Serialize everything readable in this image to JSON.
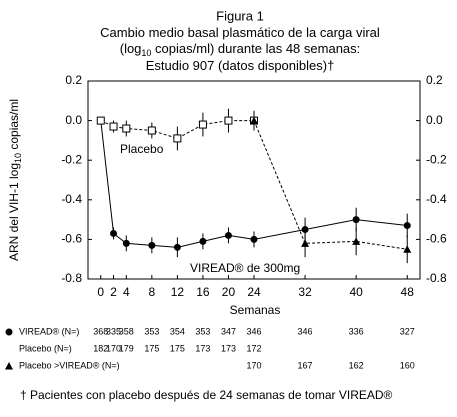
{
  "chart_data": {
    "type": "line",
    "title": [
      "Figura 1",
      "Cambio medio basal plasmático de la carga viral",
      [
        "(log",
        "10",
        " copias/ml) durante las 48 semanas:"
      ],
      "Estudio 907 (datos disponibles)†"
    ],
    "y_label": [
      "ARN del VIH-1 log",
      "10",
      " copias/ml"
    ],
    "x_label": "Semanas",
    "x": [
      0,
      2,
      4,
      8,
      12,
      16,
      20,
      24,
      32,
      40,
      48
    ],
    "xlim": [
      -2,
      50
    ],
    "xticks": [
      0,
      2,
      4,
      8,
      12,
      16,
      20,
      24,
      32,
      40,
      48
    ],
    "ylim": [
      -0.8,
      0.2
    ],
    "yticks": [
      0.2,
      {
        "value": 0,
        "label": "0.0"
      },
      -0.2,
      -0.4,
      -0.6,
      -0.8
    ],
    "series": [
      {
        "name": "VIREAD® de 300mg",
        "color": "#000000",
        "marker": "circle",
        "dashed": false,
        "values": [
          0.0,
          -0.57,
          -0.62,
          -0.63,
          -0.64,
          -0.61,
          -0.58,
          -0.6,
          -0.55,
          -0.5,
          -0.53
        ],
        "errors": [
          0.0,
          0.03,
          0.04,
          0.04,
          0.05,
          0.04,
          0.04,
          0.04,
          0.06,
          0.06,
          0.06
        ]
      },
      {
        "name": "Placebo",
        "color": "#000000",
        "marker": "square",
        "dashed": true,
        "values": [
          0.0,
          -0.03,
          -0.04,
          -0.05,
          -0.09,
          -0.02,
          0.0,
          0.0,
          null,
          null,
          null
        ],
        "errors": [
          0.0,
          0.03,
          0.04,
          0.04,
          0.06,
          0.06,
          0.06,
          0.05,
          null,
          null,
          null
        ]
      },
      {
        "name": "Placebo >VIREAD®",
        "color": "#000000",
        "marker": "triangle",
        "dashed": true,
        "values": [
          null,
          null,
          null,
          null,
          null,
          null,
          null,
          0.0,
          -0.62,
          -0.61,
          -0.65
        ],
        "errors": [
          null,
          null,
          null,
          null,
          null,
          null,
          null,
          0.0,
          0.07,
          0.07,
          0.07
        ]
      }
    ]
  },
  "table": {
    "rows": [
      {
        "label": "VIREAD® (N=)",
        "marker": "circle",
        "values": [
          368,
          335,
          358,
          353,
          354,
          353,
          347,
          346,
          346,
          336,
          327
        ]
      },
      {
        "label": "Placebo (N=)",
        "marker": null,
        "values": [
          182,
          170,
          179,
          175,
          175,
          173,
          173,
          172,
          null,
          null,
          null
        ]
      },
      {
        "label": "Placebo >VIREAD® (N=)",
        "marker": "triangle",
        "values": [
          null,
          null,
          null,
          null,
          null,
          null,
          null,
          170,
          167,
          162,
          160
        ]
      }
    ]
  },
  "footnote": "† Pacientes con placebo después de 24 semanas de tomar VIREAD®"
}
